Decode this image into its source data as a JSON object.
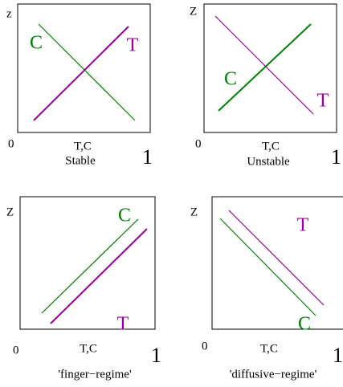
{
  "panels": [
    {
      "z_label": "z",
      "origin": "0",
      "axis_label": "T,C",
      "end": "1",
      "caption": "Stable",
      "c_label": "C",
      "t_label": "T"
    },
    {
      "z_label": "Z",
      "origin": "0",
      "axis_label": "T,C",
      "end": "1",
      "caption": "Unstable",
      "c_label": "C",
      "t_label": "T"
    },
    {
      "z_label": "Z",
      "origin": "0",
      "axis_label": "T,C",
      "end": "1",
      "caption": "'finger−regime'",
      "c_label": "C",
      "t_label": "T"
    },
    {
      "z_label": "Z",
      "origin": "0",
      "axis_label": "T,C",
      "end": "1",
      "caption": "'diffusive−regime'",
      "c_label": "C",
      "t_label": "T"
    }
  ]
}
